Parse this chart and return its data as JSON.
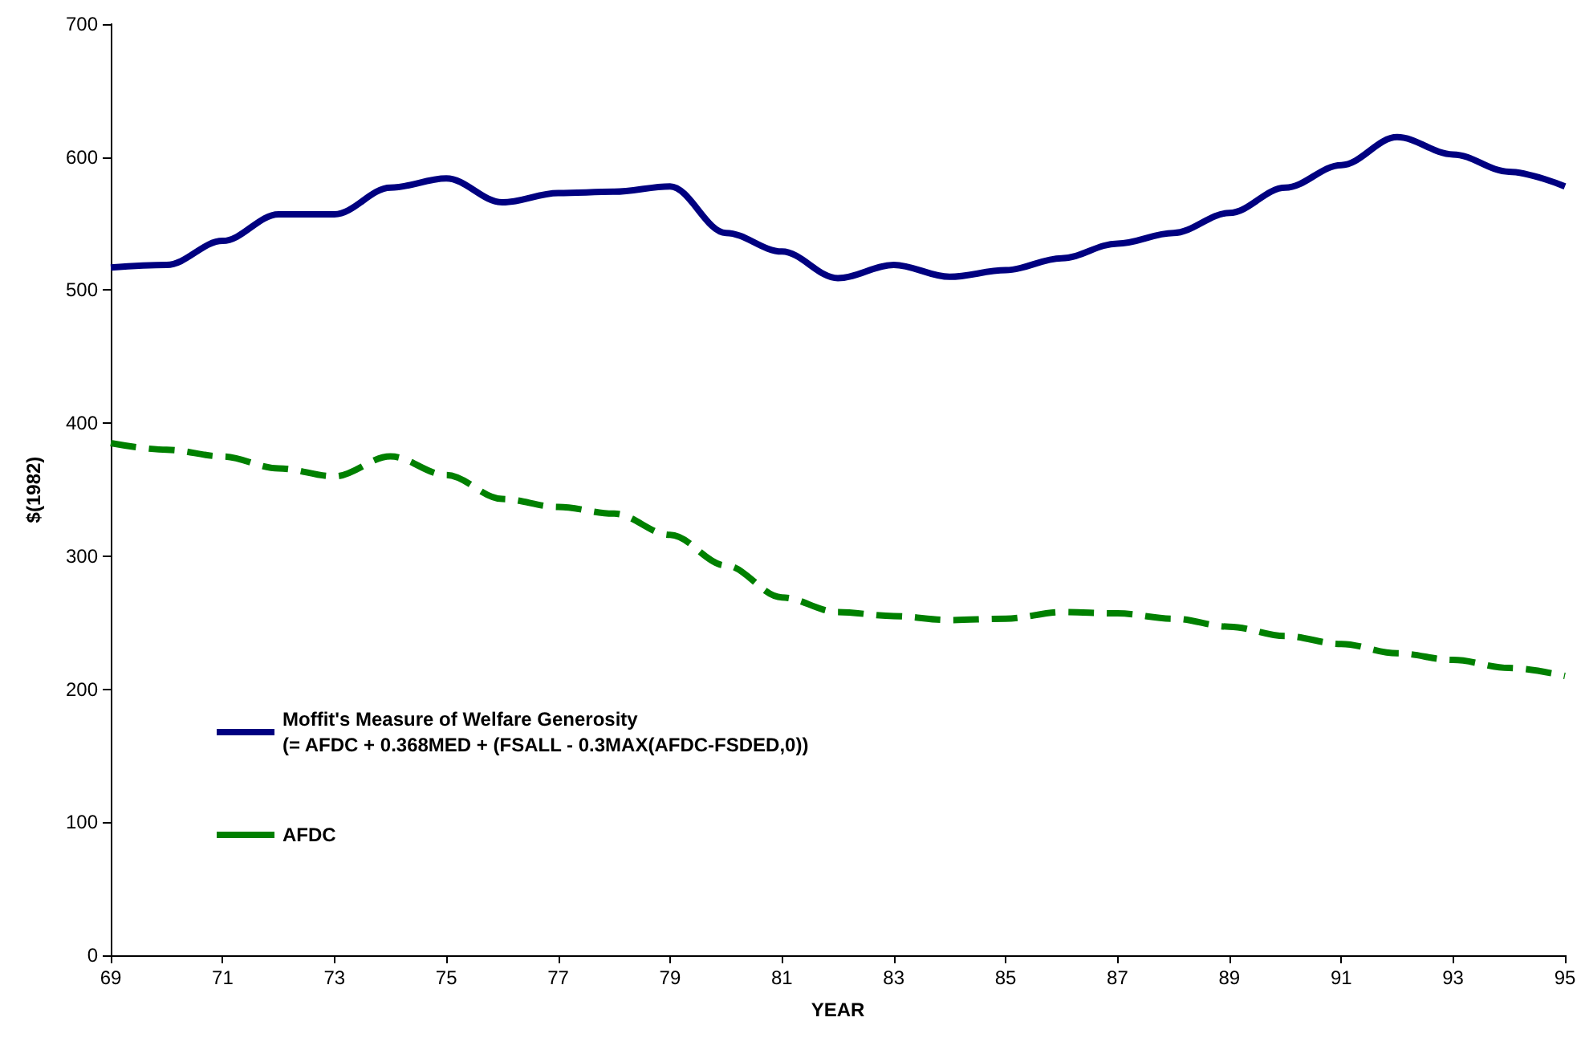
{
  "chart_data": {
    "type": "line",
    "xlabel": "YEAR",
    "ylabel": "$(1982)",
    "x": [
      69,
      70,
      71,
      72,
      73,
      74,
      75,
      76,
      77,
      78,
      79,
      80,
      81,
      82,
      83,
      84,
      85,
      86,
      87,
      88,
      89,
      90,
      91,
      92,
      93,
      94,
      95
    ],
    "series": [
      {
        "name": "Moffit's Measure of Welfare Generosity\n(= AFDC + 0.368MED + (FSALL - 0.3MAX(AFDC-FSDED,0))",
        "color": "#000080",
        "line_style": "solid",
        "values": [
          517,
          519,
          537,
          557,
          557,
          577,
          584,
          566,
          573,
          574,
          578,
          543,
          529,
          509,
          519,
          510,
          515,
          524,
          535,
          543,
          558,
          577,
          594,
          615,
          602,
          589,
          578
        ]
      },
      {
        "name": "AFDC",
        "color": "#008000",
        "line_style": "dashed",
        "values": [
          385,
          380,
          375,
          366,
          360,
          375,
          361,
          343,
          337,
          332,
          316,
          293,
          269,
          258,
          255,
          252,
          253,
          258,
          257,
          253,
          247,
          240,
          234,
          227,
          222,
          216,
          210
        ]
      }
    ],
    "xlim": [
      69,
      95
    ],
    "xticks": [
      69,
      71,
      73,
      75,
      77,
      79,
      81,
      83,
      85,
      87,
      89,
      91,
      93,
      95
    ],
    "ylim": [
      0,
      700
    ],
    "yticks": [
      0,
      100,
      200,
      300,
      400,
      500,
      600,
      700
    ],
    "grid": false,
    "legend": "left",
    "marker": "none"
  }
}
